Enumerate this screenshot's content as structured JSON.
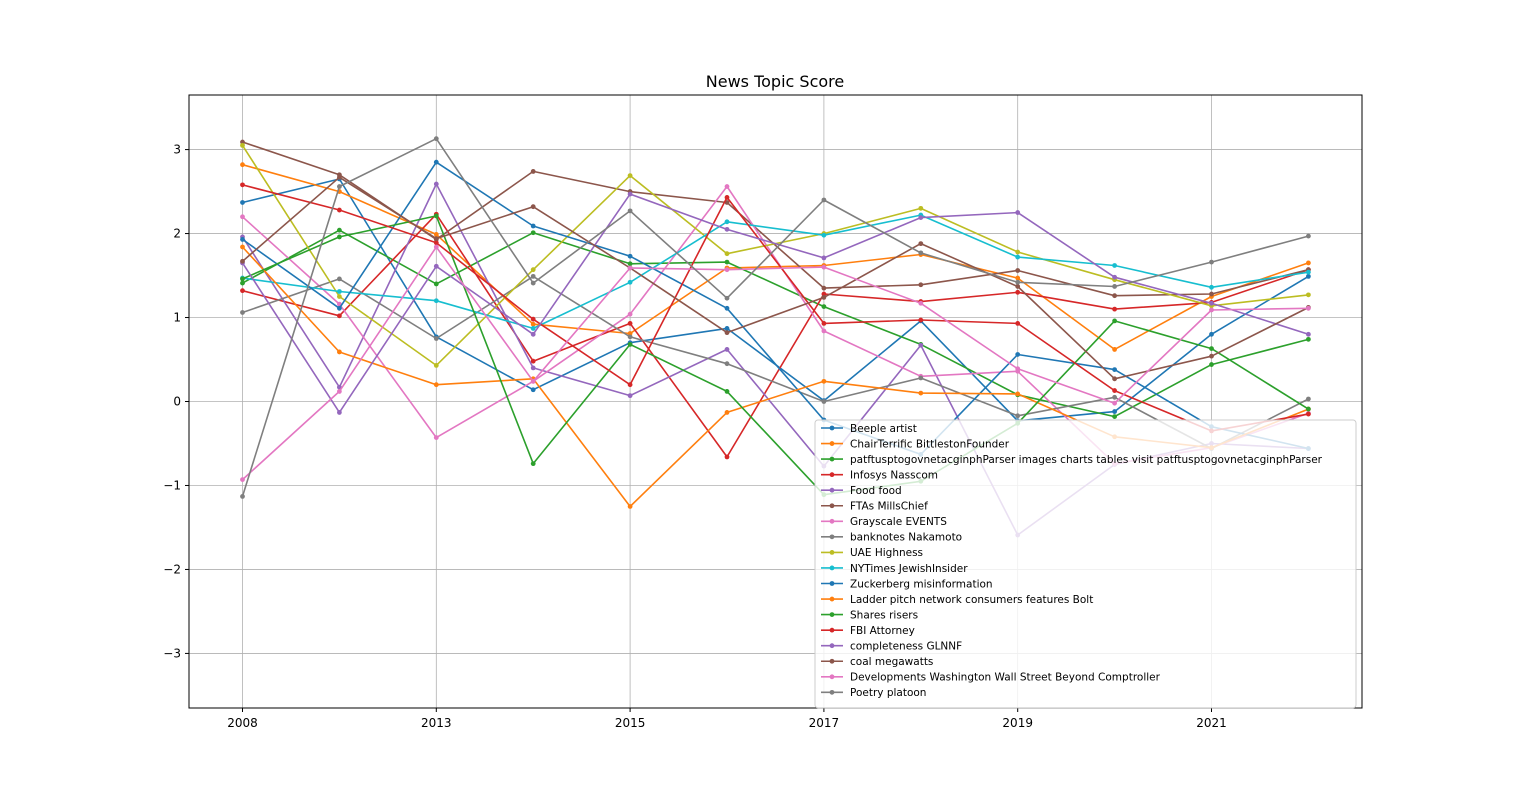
{
  "chart_data": {
    "type": "line",
    "title": "News Topic Score",
    "xlabel": "",
    "ylabel": "",
    "x": [
      2008,
      2010,
      2013,
      2014,
      2015,
      2016,
      2017,
      2018,
      2019,
      2020,
      2021,
      2022
    ],
    "x_tick_labels": [
      "2008",
      "2013",
      "2015",
      "2017",
      "2019",
      "2021"
    ],
    "x_tick_values": [
      2008,
      2013,
      2015,
      2017,
      2019,
      2021
    ],
    "y_tick_values": [
      -3,
      -2,
      -1,
      0,
      1,
      2,
      3
    ],
    "y_tick_labels": [
      "−3",
      "−2",
      "−1",
      "0",
      "1",
      "2",
      "3"
    ],
    "ylim": [
      -3.65,
      3.65
    ],
    "grid": true,
    "legend_position": "lower-right",
    "series": [
      {
        "name": "Beeple artist",
        "color": "#1f77b4",
        "values": [
          2.37,
          2.65,
          0.77,
          0.14,
          0.7,
          0.87,
          0.01,
          0.96,
          -0.23,
          -0.12,
          0.8,
          1.49
        ]
      },
      {
        "name": "ChairTerrific BittlestonFounder",
        "color": "#ff7f0e",
        "values": [
          2.82,
          2.5,
          1.99,
          0.92,
          0.81,
          1.59,
          1.62,
          1.75,
          1.47,
          0.62,
          1.25,
          1.65
        ]
      },
      {
        "name": "patftusptogovnetacginphParser images charts tables visit patftusptogovnetacginphParser",
        "color": "#2ca02c",
        "values": [
          1.41,
          2.04,
          1.4,
          2.01,
          1.64,
          1.66,
          1.13,
          0.68,
          0.08,
          -0.18,
          0.44,
          0.74
        ]
      },
      {
        "name": "Infosys Nasscom",
        "color": "#d62728",
        "values": [
          1.32,
          1.02,
          2.23,
          0.48,
          0.93,
          -0.66,
          1.28,
          1.19,
          1.3,
          1.1,
          1.18,
          1.57
        ]
      },
      {
        "name": "Food food",
        "color": "#9467bd",
        "values": [
          1.96,
          0.17,
          2.59,
          0.4,
          0.07,
          0.62,
          -0.77,
          0.67,
          -1.59,
          -0.75,
          -0.5,
          -0.56
        ]
      },
      {
        "name": "FTAs MillsChief",
        "color": "#8c564b",
        "values": [
          3.09,
          2.7,
          1.93,
          2.74,
          2.5,
          2.37,
          1.35,
          1.39,
          1.56,
          1.26,
          1.28,
          1.57
        ]
      },
      {
        "name": "Grayscale EVENTS",
        "color": "#e377c2",
        "values": [
          2.2,
          1.16,
          -0.43,
          0.24,
          1.04,
          2.56,
          0.84,
          0.3,
          0.36,
          -0.74,
          -0.55,
          -0.14
        ]
      },
      {
        "name": "banknotes Nakamoto",
        "color": "#7f7f7f",
        "values": [
          1.06,
          1.46,
          0.75,
          1.49,
          0.77,
          0.45,
          0.0,
          0.28,
          -0.17,
          0.05,
          -0.56,
          0.03
        ]
      },
      {
        "name": "UAE Highness",
        "color": "#bcbd22",
        "values": [
          3.05,
          1.25,
          0.43,
          1.57,
          2.69,
          1.76,
          2.0,
          2.3,
          1.78,
          1.45,
          1.14,
          1.27
        ]
      },
      {
        "name": "NYTimes JewishInsider",
        "color": "#17becf",
        "values": [
          1.47,
          1.31,
          1.2,
          0.87,
          1.42,
          2.14,
          1.98,
          2.22,
          1.72,
          1.62,
          1.36,
          1.54
        ]
      },
      {
        "name": "Zuckerberg misinformation",
        "color": "#1f77b4",
        "values": [
          1.93,
          1.11,
          2.85,
          2.09,
          1.73,
          1.11,
          -0.22,
          -0.63,
          0.56,
          0.38,
          -0.3,
          -0.56
        ]
      },
      {
        "name": "Ladder pitch network consumers features Bolt",
        "color": "#ff7f0e",
        "values": [
          1.84,
          0.59,
          0.2,
          0.27,
          -1.25,
          -0.13,
          0.24,
          0.1,
          0.09,
          -0.42,
          -0.55,
          -0.09
        ]
      },
      {
        "name": "Shares risers",
        "color": "#2ca02c",
        "values": [
          1.46,
          1.96,
          2.21,
          -0.74,
          0.68,
          0.12,
          -1.11,
          -0.95,
          -0.26,
          0.96,
          0.63,
          -0.09
        ]
      },
      {
        "name": "FBI Attorney",
        "color": "#d62728",
        "values": [
          2.58,
          2.28,
          1.89,
          0.98,
          0.2,
          2.43,
          0.93,
          0.97,
          0.93,
          0.13,
          -0.35,
          -0.15
        ]
      },
      {
        "name": "completeness GLNNF",
        "color": "#9467bd",
        "values": [
          1.65,
          -0.13,
          1.61,
          0.8,
          2.47,
          2.05,
          1.71,
          2.19,
          2.25,
          1.48,
          1.17,
          0.8
        ]
      },
      {
        "name": "coal megawatts",
        "color": "#8c564b",
        "values": [
          1.67,
          2.67,
          1.94,
          2.32,
          1.59,
          0.82,
          1.24,
          1.88,
          1.37,
          0.27,
          0.54,
          1.12
        ]
      },
      {
        "name": "Developments Washington Wall Street Beyond Comptroller",
        "color": "#e377c2",
        "values": [
          -0.93,
          0.12,
          1.84,
          0.24,
          1.59,
          1.57,
          1.6,
          1.17,
          0.39,
          -0.02,
          1.09,
          1.11
        ]
      },
      {
        "name": "Poetry platoon",
        "color": "#7f7f7f",
        "values": [
          -1.13,
          2.56,
          3.13,
          1.41,
          2.27,
          1.23,
          2.4,
          1.77,
          1.42,
          1.37,
          1.66,
          1.97
        ]
      }
    ]
  }
}
